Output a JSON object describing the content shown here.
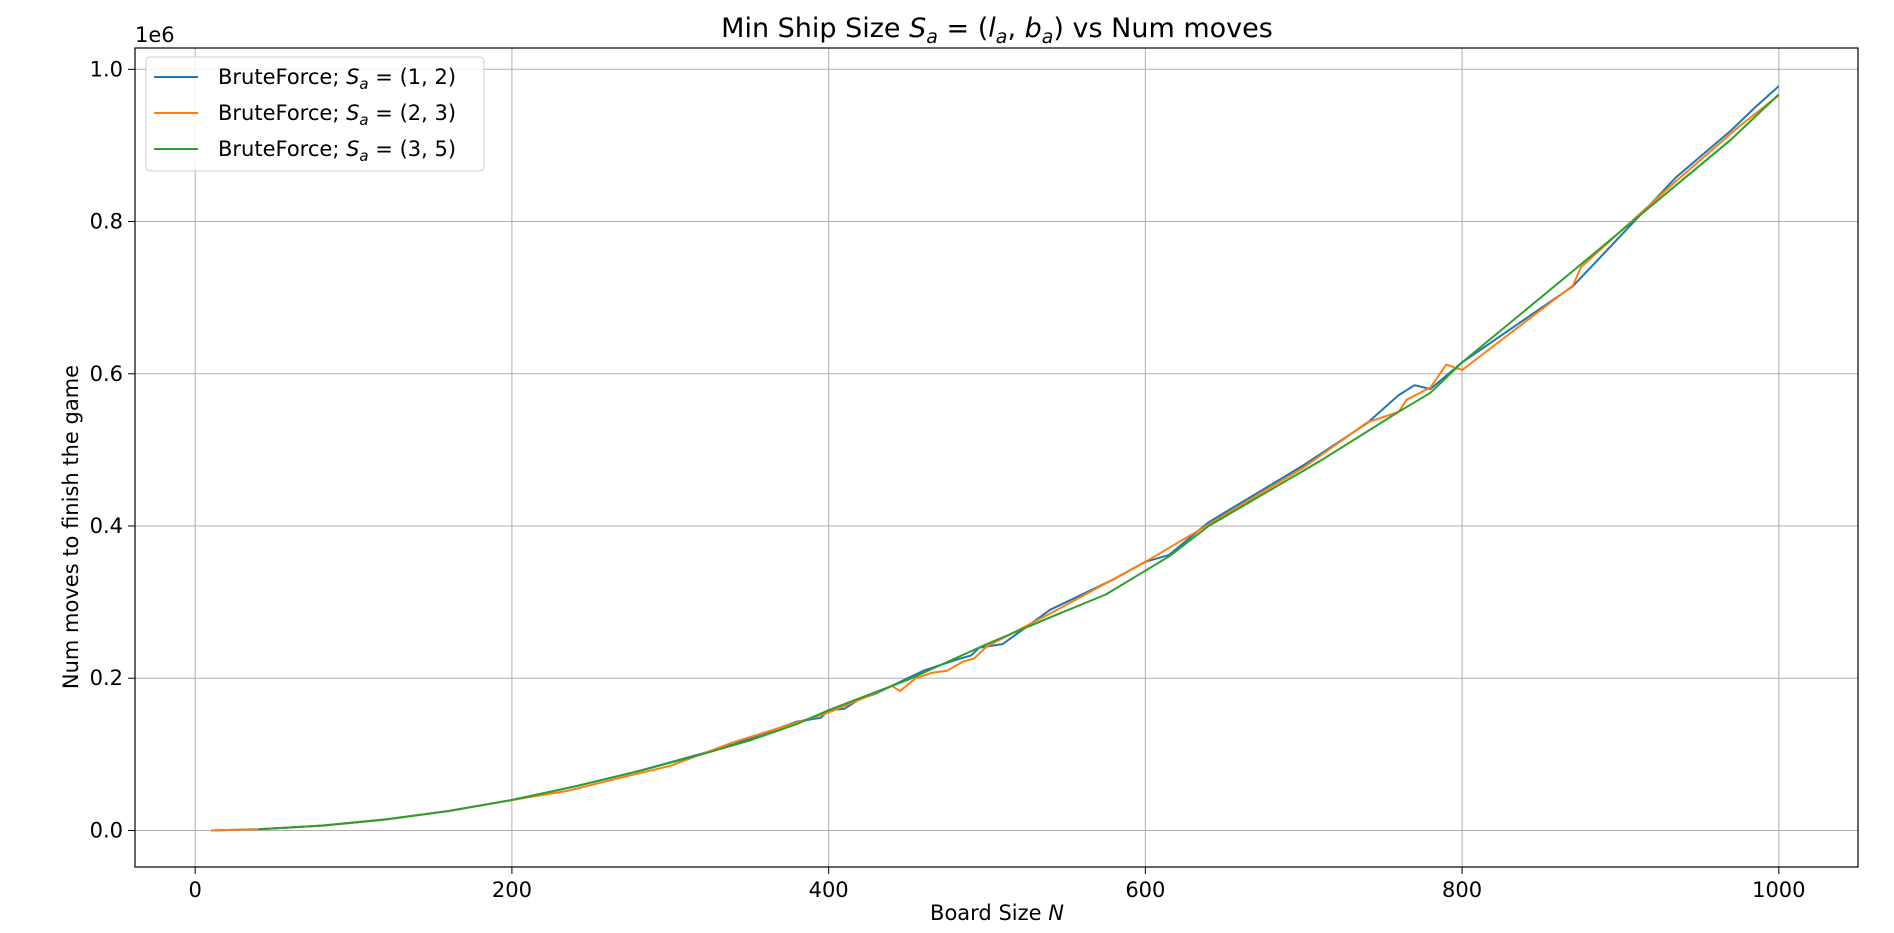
{
  "chart_data": {
    "type": "line",
    "title": "Min Ship Size S_a = (l_a, b_a) vs Num moves",
    "title_parts": {
      "prefix": "Min Ship Size ",
      "s": "S",
      "a": "a",
      "eq": " = (",
      "l": "l",
      "comma": ", ",
      "b": "b",
      "close": ")",
      "suffix": " vs Num moves"
    },
    "xlabel": "Board Size N",
    "xlabel_parts": {
      "text": "Board Size ",
      "var": "N"
    },
    "ylabel": "Num moves to finish the game",
    "y_offset_text": "1e6",
    "xlim": [
      -38,
      1050
    ],
    "ylim": [
      -0.048,
      1.028
    ],
    "x_ticks": [
      0,
      200,
      400,
      600,
      800,
      1000
    ],
    "x_tick_labels": [
      "0",
      "200",
      "400",
      "600",
      "800",
      "1000"
    ],
    "y_ticks": [
      0.0,
      0.2,
      0.4,
      0.6,
      0.8,
      1.0
    ],
    "y_tick_labels": [
      "0.0",
      "0.2",
      "0.4",
      "0.6",
      "0.8",
      "1.0"
    ],
    "grid": true,
    "legend_position": "top-left",
    "series": [
      {
        "name": "BruteForce; S_a = (1, 2)",
        "legend_prefix": "BruteForce; ",
        "legend_suffix": " = (1, 2)",
        "color": "#1f77b4",
        "x": [
          10,
          40,
          80,
          120,
          160,
          200,
          240,
          280,
          320,
          340,
          360,
          380,
          395,
          400,
          410,
          420,
          430,
          440,
          450,
          460,
          470,
          480,
          490,
          495,
          510,
          540,
          580,
          600,
          615,
          640,
          700,
          740,
          760,
          770,
          780,
          800,
          870,
          935,
          970,
          985,
          1000
        ],
        "y": [
          0.0,
          0.0016,
          0.0064,
          0.0144,
          0.0256,
          0.04,
          0.058,
          0.078,
          0.101,
          0.113,
          0.128,
          0.143,
          0.148,
          0.158,
          0.16,
          0.173,
          0.18,
          0.19,
          0.2,
          0.21,
          0.217,
          0.224,
          0.23,
          0.24,
          0.245,
          0.29,
          0.33,
          0.353,
          0.362,
          0.405,
          0.48,
          0.535,
          0.572,
          0.585,
          0.58,
          0.615,
          0.715,
          0.858,
          0.92,
          0.95,
          0.978
        ]
      },
      {
        "name": "BruteForce; S_a = (2, 3)",
        "legend_prefix": "BruteForce; ",
        "legend_suffix": " = (2, 3)",
        "color": "#ff7f0e",
        "x": [
          10,
          40,
          80,
          120,
          160,
          200,
          235,
          270,
          300,
          340,
          380,
          400,
          420,
          440,
          445,
          455,
          465,
          475,
          485,
          492,
          500,
          540,
          600,
          640,
          700,
          740,
          760,
          765,
          780,
          790,
          800,
          870,
          875,
          935,
          975,
          1000
        ],
        "y": [
          0.0,
          0.0016,
          0.0064,
          0.0144,
          0.0256,
          0.04,
          0.052,
          0.07,
          0.085,
          0.116,
          0.142,
          0.155,
          0.172,
          0.19,
          0.183,
          0.2,
          0.207,
          0.21,
          0.222,
          0.226,
          0.242,
          0.285,
          0.353,
          0.402,
          0.477,
          0.536,
          0.55,
          0.566,
          0.582,
          0.612,
          0.605,
          0.716,
          0.74,
          0.853,
          0.925,
          0.966
        ]
      },
      {
        "name": "BruteForce; S_a = (3, 5)",
        "legend_prefix": "BruteForce; ",
        "legend_suffix": " = (3, 5)",
        "color": "#2ca02c",
        "x": [
          40,
          80,
          120,
          160,
          200,
          240,
          280,
          320,
          350,
          380,
          400,
          450,
          500,
          540,
          575,
          615,
          640,
          710,
          760,
          780,
          800,
          870,
          970,
          1000
        ],
        "y": [
          0.0016,
          0.0064,
          0.0144,
          0.0256,
          0.04,
          0.058,
          0.078,
          0.1,
          0.118,
          0.14,
          0.158,
          0.198,
          0.245,
          0.28,
          0.31,
          0.36,
          0.4,
          0.485,
          0.55,
          0.575,
          0.615,
          0.735,
          0.908,
          0.967
        ]
      }
    ]
  }
}
